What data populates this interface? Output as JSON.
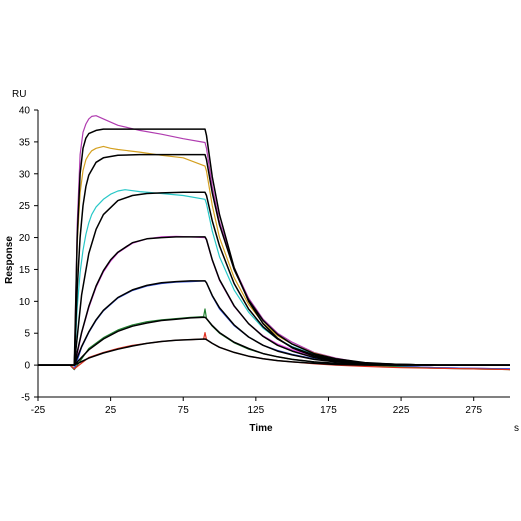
{
  "chart_data": {
    "type": "line",
    "title": "",
    "xlabel": "Time",
    "x_unit": "s",
    "ylabel": "Response",
    "y_unit": "RU",
    "xlim": [
      -25,
      300
    ],
    "ylim": [
      -5,
      40
    ],
    "xticks": [
      -25,
      25,
      75,
      125,
      175,
      225,
      275
    ],
    "yticks": [
      -5,
      0,
      5,
      10,
      15,
      20,
      25,
      30,
      35,
      40
    ],
    "grid": false,
    "legend": "none",
    "injection": {
      "start": 0,
      "end": 90
    },
    "series": [
      {
        "color": "#b03cb0",
        "kind": "measured",
        "x": [
          -25,
          -3,
          0,
          2,
          4,
          6,
          8,
          10,
          12,
          15,
          20,
          30,
          45,
          60,
          75,
          90,
          91,
          95,
          100,
          110,
          120,
          130,
          140,
          150,
          165,
          180,
          200,
          225,
          250,
          275,
          300
        ],
        "y": [
          0,
          0,
          -0.5,
          22,
          33,
          36.5,
          37.8,
          38.6,
          39,
          39.1,
          38.6,
          37.6,
          36.8,
          36.2,
          35.5,
          34.9,
          34,
          28,
          22.5,
          15.3,
          10.5,
          7.2,
          5,
          3.6,
          2,
          1.1,
          0.3,
          -0.2,
          -0.4,
          -0.5,
          -0.6
        ]
      },
      {
        "color": "#d4a020",
        "kind": "measured",
        "x": [
          -25,
          -3,
          0,
          2,
          4,
          6,
          8,
          10,
          12,
          15,
          20,
          25,
          30,
          45,
          60,
          75,
          90,
          91,
          95,
          100,
          110,
          120,
          130,
          140,
          150,
          165,
          180,
          200,
          225,
          250,
          275,
          300
        ],
        "y": [
          0,
          0,
          -0.5,
          19,
          27,
          30.5,
          32.2,
          33,
          33.6,
          34,
          34.3,
          34,
          33.8,
          33.4,
          32.9,
          32.5,
          31.2,
          30.4,
          25,
          20,
          13.7,
          9.5,
          6.6,
          4.6,
          3.3,
          1.9,
          1,
          0.3,
          -0.2,
          -0.4,
          -0.6,
          -0.7
        ]
      },
      {
        "color": "#28c8c8",
        "kind": "measured",
        "x": [
          -25,
          -3,
          0,
          2,
          4,
          6,
          8,
          10,
          12,
          15,
          20,
          25,
          30,
          35,
          45,
          60,
          75,
          90,
          91,
          95,
          100,
          110,
          120,
          130,
          140,
          150,
          165,
          180,
          200,
          225,
          250,
          275,
          300
        ],
        "y": [
          0,
          0,
          -0.5,
          9,
          14.5,
          18,
          20.5,
          22.3,
          23.6,
          24.8,
          26,
          26.8,
          27.3,
          27.5,
          27.2,
          26.9,
          26.6,
          26,
          25.3,
          21,
          17,
          11.8,
          8.3,
          5.8,
          4.1,
          2.9,
          1.7,
          0.9,
          0.3,
          -0.2,
          -0.4,
          -0.5,
          -0.6
        ]
      },
      {
        "color": "#e040e0",
        "kind": "measured",
        "x": [
          -25,
          -3,
          0,
          5,
          10,
          15,
          20,
          25,
          30,
          40,
          50,
          60,
          70,
          80,
          90,
          91,
          95,
          100,
          110,
          120,
          130,
          140,
          150,
          165,
          180,
          200,
          225,
          250,
          275,
          300
        ],
        "y": [
          0,
          0,
          -0.6,
          5,
          9,
          12.2,
          14.6,
          16.3,
          17.6,
          19.1,
          19.8,
          20.1,
          20.2,
          20.1,
          20,
          19.6,
          16.4,
          13.3,
          9.2,
          6.5,
          4.6,
          3.3,
          2.4,
          1.4,
          0.7,
          0.2,
          -0.2,
          -0.4,
          -0.5,
          -0.6
        ]
      },
      {
        "color": "#3050e0",
        "kind": "measured",
        "x": [
          -25,
          -3,
          0,
          5,
          10,
          15,
          20,
          30,
          40,
          50,
          60,
          70,
          80,
          90,
          91,
          95,
          100,
          110,
          120,
          130,
          140,
          150,
          165,
          180,
          200,
          225,
          250,
          275,
          300
        ],
        "y": [
          0,
          0,
          -0.7,
          2.8,
          5.1,
          7,
          8.5,
          10.5,
          11.7,
          12.4,
          12.8,
          13,
          13.1,
          13.2,
          12.9,
          10.8,
          8.8,
          6.2,
          4.4,
          3.1,
          2.3,
          1.7,
          1,
          0.5,
          0.1,
          -0.2,
          -0.4,
          -0.5,
          -0.6
        ]
      },
      {
        "color": "#208030",
        "kind": "measured",
        "x": [
          -25,
          -3,
          0,
          10,
          20,
          30,
          40,
          50,
          60,
          70,
          80,
          89,
          90,
          91,
          95,
          100,
          110,
          120,
          130,
          140,
          150,
          165,
          180,
          200,
          225,
          250,
          275,
          300
        ],
        "y": [
          0,
          0,
          -0.7,
          2.6,
          4.3,
          5.5,
          6.3,
          6.8,
          7.1,
          7.3,
          7.5,
          7.6,
          8.8,
          7.3,
          6.1,
          5,
          3.5,
          2.5,
          1.8,
          1.3,
          0.9,
          0.5,
          0.2,
          0,
          -0.3,
          -0.5,
          -0.6,
          -0.7
        ]
      },
      {
        "color": "#e03020",
        "kind": "measured",
        "x": [
          -25,
          -3,
          0,
          10,
          20,
          30,
          40,
          50,
          60,
          70,
          80,
          89,
          90,
          91,
          95,
          100,
          110,
          120,
          130,
          140,
          150,
          165,
          180,
          200,
          225,
          250,
          275,
          300
        ],
        "y": [
          0,
          0,
          -0.6,
          1.2,
          2,
          2.6,
          3.1,
          3.4,
          3.7,
          3.9,
          4,
          4.1,
          5.1,
          4,
          3.4,
          2.8,
          2,
          1.4,
          1,
          0.7,
          0.5,
          0.2,
          0,
          -0.2,
          -0.4,
          -0.5,
          -0.6,
          -0.7
        ]
      },
      {
        "color": "#000000",
        "kind": "fit",
        "x": [
          -25,
          0,
          2,
          4,
          6,
          8,
          10,
          15,
          20,
          30,
          45,
          60,
          75,
          90,
          91,
          95,
          100,
          110,
          120,
          130,
          140,
          150,
          165,
          180,
          200,
          225,
          250,
          275,
          300
        ],
        "y": [
          0,
          0,
          20,
          30,
          34,
          35.6,
          36.3,
          36.8,
          37,
          37,
          37,
          37,
          37,
          37,
          36,
          29.5,
          23.6,
          15.3,
          10,
          6.5,
          4.2,
          2.7,
          1.4,
          0.7,
          0.3,
          0.1,
          0,
          0,
          0
        ]
      },
      {
        "color": "#000000",
        "kind": "fit",
        "x": [
          -25,
          0,
          2,
          4,
          6,
          8,
          10,
          15,
          20,
          30,
          45,
          60,
          75,
          90,
          91,
          95,
          100,
          110,
          120,
          130,
          140,
          150,
          165,
          180,
          200,
          225,
          250,
          275,
          300
        ],
        "y": [
          0,
          0,
          12,
          20,
          25,
          28,
          29.8,
          31.8,
          32.5,
          32.9,
          33,
          33,
          33,
          33,
          32.2,
          27,
          22,
          15,
          10.2,
          7,
          4.8,
          3.3,
          1.8,
          1,
          0.4,
          0.1,
          0,
          0,
          0
        ]
      },
      {
        "color": "#000000",
        "kind": "fit",
        "x": [
          -25,
          0,
          5,
          10,
          15,
          20,
          30,
          40,
          50,
          60,
          75,
          90,
          91,
          95,
          100,
          110,
          120,
          130,
          140,
          150,
          165,
          180,
          200,
          225,
          250,
          275,
          300
        ],
        "y": [
          0,
          0,
          11,
          17.5,
          21.3,
          23.6,
          25.8,
          26.6,
          26.9,
          27,
          27.1,
          27.1,
          26.6,
          22.6,
          18.7,
          12.8,
          8.8,
          6,
          4.1,
          2.8,
          1.6,
          0.8,
          0.3,
          0.1,
          0,
          0,
          0
        ]
      },
      {
        "color": "#000000",
        "kind": "fit",
        "x": [
          -25,
          0,
          5,
          10,
          15,
          20,
          25,
          30,
          40,
          50,
          60,
          70,
          80,
          90,
          91,
          95,
          100,
          110,
          120,
          130,
          140,
          150,
          165,
          180,
          200,
          225,
          250,
          275,
          300
        ],
        "y": [
          0,
          0,
          5.1,
          9.2,
          12.4,
          14.8,
          16.5,
          17.7,
          19.2,
          19.8,
          20,
          20.1,
          20.1,
          20.1,
          19.7,
          16.5,
          13.4,
          9.3,
          6.5,
          4.5,
          3.1,
          2.2,
          1.2,
          0.6,
          0.2,
          0.1,
          0,
          0,
          0
        ]
      },
      {
        "color": "#000000",
        "kind": "fit",
        "x": [
          -25,
          0,
          5,
          10,
          15,
          20,
          30,
          40,
          50,
          60,
          70,
          80,
          90,
          91,
          95,
          100,
          110,
          120,
          130,
          140,
          150,
          165,
          180,
          200,
          225,
          250,
          275,
          300
        ],
        "y": [
          0,
          0,
          2.9,
          5.2,
          7.1,
          8.6,
          10.6,
          11.8,
          12.5,
          12.9,
          13.1,
          13.2,
          13.2,
          12.9,
          10.9,
          9,
          6.3,
          4.4,
          3.1,
          2.2,
          1.6,
          0.9,
          0.5,
          0.2,
          0.1,
          0,
          0,
          0
        ]
      },
      {
        "color": "#000000",
        "kind": "fit",
        "x": [
          -25,
          0,
          10,
          20,
          30,
          40,
          50,
          60,
          70,
          80,
          90,
          91,
          95,
          100,
          110,
          120,
          130,
          140,
          150,
          165,
          180,
          200,
          225,
          250,
          275,
          300
        ],
        "y": [
          0,
          0,
          2.4,
          4.1,
          5.3,
          6.1,
          6.6,
          7,
          7.2,
          7.4,
          7.5,
          7.3,
          6.2,
          5.1,
          3.6,
          2.6,
          1.8,
          1.3,
          0.9,
          0.5,
          0.3,
          0.1,
          0,
          0,
          0,
          0
        ]
      },
      {
        "color": "#000000",
        "kind": "fit",
        "x": [
          -25,
          0,
          10,
          20,
          30,
          40,
          50,
          60,
          70,
          80,
          90,
          91,
          95,
          100,
          110,
          120,
          130,
          140,
          150,
          165,
          180,
          200,
          225,
          250,
          275,
          300
        ],
        "y": [
          0,
          0,
          1.1,
          1.9,
          2.5,
          3,
          3.4,
          3.7,
          3.9,
          4,
          4.1,
          4,
          3.4,
          2.8,
          2,
          1.4,
          1,
          0.7,
          0.5,
          0.3,
          0.1,
          0,
          0,
          0,
          0,
          0
        ]
      }
    ]
  }
}
